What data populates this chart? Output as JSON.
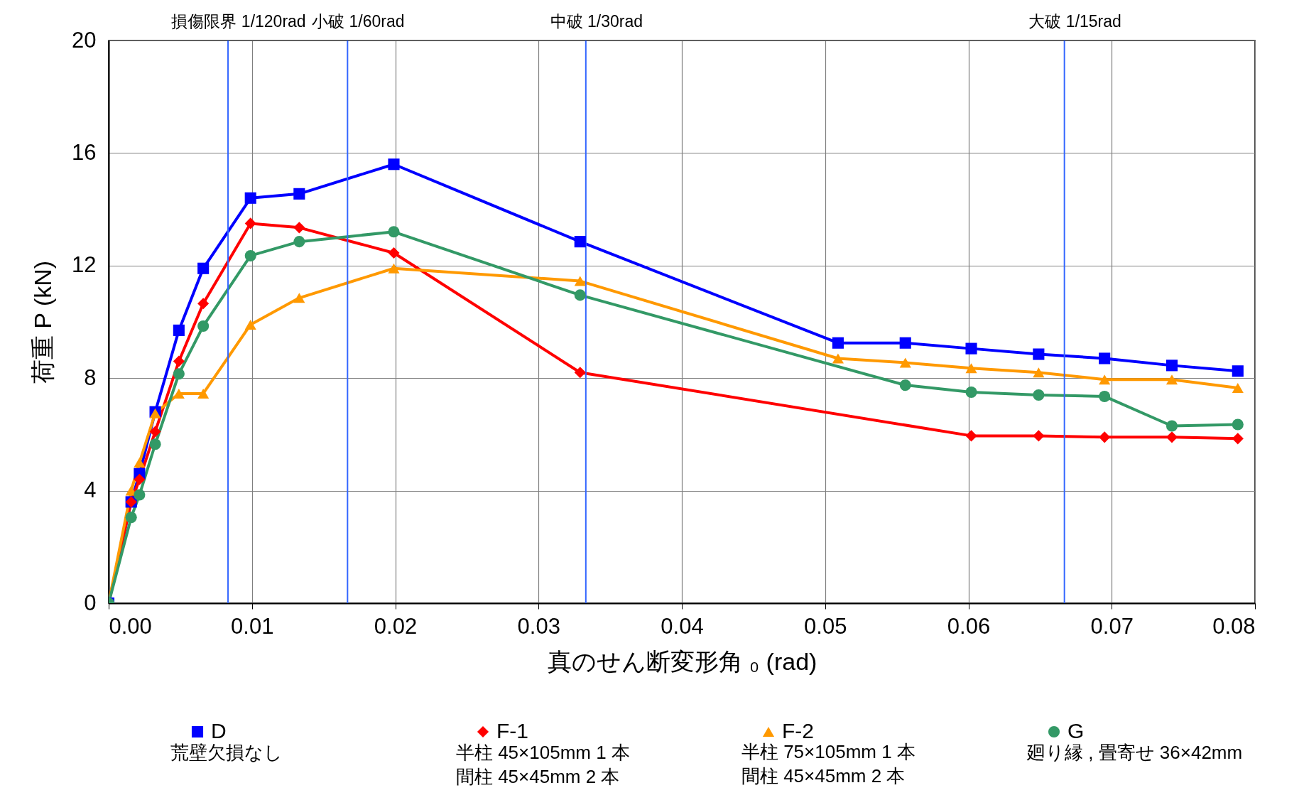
{
  "chart_data": {
    "type": "line",
    "xlabel": "真のせん断変形角 ₀ (rad)",
    "ylabel": "荷重 P (kN)",
    "xlim": [
      0,
      0.08
    ],
    "ylim": [
      0,
      20
    ],
    "xticks": [
      {
        "value": 0,
        "label": "0.00"
      },
      {
        "value": 0.01,
        "label": "0.01"
      },
      {
        "value": 0.02,
        "label": "0.02"
      },
      {
        "value": 0.03,
        "label": "0.03"
      },
      {
        "value": 0.04,
        "label": "0.04"
      },
      {
        "value": 0.05,
        "label": "0.05"
      },
      {
        "value": 0.06,
        "label": "0.06"
      },
      {
        "value": 0.07,
        "label": "0.07"
      },
      {
        "value": 0.08,
        "label": "0.08"
      }
    ],
    "yticks": [
      0,
      4,
      8,
      12,
      16,
      20
    ],
    "grid": true,
    "legend": "bottom",
    "line_style": "solid",
    "series": [
      {
        "name": "D",
        "color": "#0000ff",
        "marker": "square",
        "x": [
          0,
          0.00157,
          0.00215,
          0.00325,
          0.0049,
          0.0066,
          0.0099,
          0.0133,
          0.0199,
          0.0329,
          0.0509,
          0.0556,
          0.0602,
          0.0649,
          0.0695,
          0.0742,
          0.0788
        ],
        "values": [
          0,
          3.6,
          4.6,
          6.8,
          9.7,
          11.9,
          14.4,
          14.55,
          15.6,
          12.85,
          9.25,
          9.25,
          9.05,
          8.85,
          8.7,
          8.45,
          8.25
        ]
      },
      {
        "name": "F-1",
        "color": "#ff0000",
        "marker": "diamond",
        "x": [
          0,
          0.00157,
          0.00215,
          0.00325,
          0.0049,
          0.0066,
          0.0099,
          0.0133,
          0.0199,
          0.0329,
          0.0602,
          0.0649,
          0.0695,
          0.0742,
          0.0788
        ],
        "values": [
          0,
          3.6,
          4.4,
          6.1,
          8.6,
          10.65,
          13.5,
          13.35,
          12.45,
          8.2,
          5.95,
          5.95,
          5.9,
          5.9,
          5.85
        ]
      },
      {
        "name": "F-2",
        "color": "#ff9900",
        "marker": "triangle",
        "x": [
          0,
          0.00157,
          0.00215,
          0.00325,
          0.0049,
          0.0066,
          0.0099,
          0.0133,
          0.0199,
          0.0329,
          0.0509,
          0.0556,
          0.0602,
          0.0649,
          0.0695,
          0.0742,
          0.0788
        ],
        "values": [
          0,
          4.0,
          5.0,
          6.75,
          7.45,
          7.45,
          9.9,
          10.85,
          11.9,
          11.45,
          8.7,
          8.55,
          8.35,
          8.2,
          7.95,
          7.95,
          7.65
        ]
      },
      {
        "name": "G",
        "color": "#339966",
        "marker": "circle",
        "x": [
          0,
          0.00157,
          0.00215,
          0.00325,
          0.0049,
          0.0066,
          0.0099,
          0.0133,
          0.0199,
          0.0329,
          0.0556,
          0.0602,
          0.0649,
          0.0695,
          0.0742,
          0.0788
        ],
        "values": [
          0,
          3.05,
          3.85,
          5.65,
          8.15,
          9.85,
          12.35,
          12.85,
          13.2,
          10.95,
          7.75,
          7.5,
          7.4,
          7.35,
          6.3,
          6.35
        ]
      }
    ],
    "ref_lines": [
      {
        "axis": "x",
        "value": 0.00833,
        "label": "損傷限界 1/120rad",
        "color": "#3366ff"
      },
      {
        "axis": "x",
        "value": 0.01667,
        "label": "小破 1/60rad",
        "color": "#3366ff"
      },
      {
        "axis": "x",
        "value": 0.0333,
        "label": "中破 1/30rad",
        "color": "#3366ff"
      },
      {
        "axis": "x",
        "value": 0.0667,
        "label": "大破 1/15rad",
        "color": "#3366ff"
      }
    ],
    "annotations": [
      "荒壁欠損なし",
      "半柱 45×105mm 1 本間柱 45×45mm 2 本",
      "半柱 75×105mm 1 本間柱 45×45mm 2 本",
      "廻り縁 , 畳寄せ 36×42mm"
    ]
  }
}
